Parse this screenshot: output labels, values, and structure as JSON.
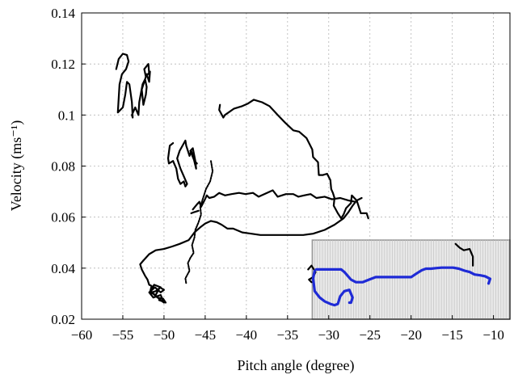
{
  "chart_data": {
    "type": "line",
    "xlabel": "Pitch angle (degree)",
    "ylabel": "Velocity (ms⁻¹)",
    "xlim": [
      -60,
      -8
    ],
    "ylim": [
      0.02,
      0.14
    ],
    "x_ticks": [
      -60,
      -55,
      -50,
      -45,
      -40,
      -35,
      -30,
      -25,
      -20,
      -15,
      -10
    ],
    "x_tick_labels": [
      "−60",
      "−55",
      "−50",
      "−45",
      "−40",
      "−35",
      "−30",
      "−25",
      "−20",
      "−15",
      "−10"
    ],
    "y_ticks": [
      0.02,
      0.04,
      0.06,
      0.08,
      0.1,
      0.12,
      0.14
    ],
    "y_tick_labels": [
      "0.02",
      "0.04",
      "0.06",
      "0.08",
      "0.1",
      "0.12",
      "0.14"
    ],
    "grid": true,
    "inset_shown": true,
    "inset_xlim": [
      -32,
      -8
    ],
    "inset_ylim": [
      0.02,
      0.051
    ],
    "colors": {
      "main": "#000000",
      "highlight": "#1f2bd6",
      "inset_fill": "#e8e8e8",
      "inset_border": "#999999",
      "grid": "#b5b5b5"
    },
    "series": [
      {
        "color": "#000000",
        "style": "solid",
        "x": [
          -55.8,
          -55.5,
          -55,
          -54.5,
          -54.3,
          -54.6,
          -55.1,
          -55.4,
          -55.6,
          -55,
          -54.7,
          -54.5,
          -54.2,
          -53.9,
          -53.8,
          -53.9,
          -53.5,
          -53.1,
          -53,
          -52.6,
          -52.3,
          -52.1,
          -52.2,
          -52.5,
          -52.7,
          -52.1,
          -51.8,
          -51.7,
          -52.2,
          -52.4,
          -51.9,
          -51.8
        ],
        "y": [
          0.118,
          0.122,
          0.124,
          0.1235,
          0.121,
          0.118,
          0.116,
          0.112,
          0.101,
          0.103,
          0.108,
          0.113,
          0.112,
          0.105,
          0.099,
          0.1,
          0.103,
          0.1,
          0.105,
          0.112,
          0.114,
          0.111,
          0.108,
          0.104,
          0.11,
          0.116,
          0.113,
          0.117,
          0.115,
          0.118,
          0.12,
          0.116
        ]
      },
      {
        "color": "#000000",
        "style": "solid",
        "x": [
          -48.9,
          -49.3,
          -49.5,
          -49.4,
          -48.9,
          -48.5,
          -48.3,
          -48,
          -47.6,
          -47.4,
          -47.2,
          -47.6,
          -48,
          -48.4,
          -48.1,
          -47.4,
          -47.3,
          -46.9,
          -46.7,
          -46.4,
          -46.1,
          -46.2,
          -46.5,
          -46.8,
          -46.3,
          -46
        ],
        "y": [
          0.089,
          0.088,
          0.083,
          0.081,
          0.082,
          0.079,
          0.075,
          0.073,
          0.074,
          0.072,
          0.073,
          0.076,
          0.079,
          0.083,
          0.086,
          0.09,
          0.088,
          0.084,
          0.086,
          0.083,
          0.079,
          0.082,
          0.087,
          0.086,
          0.082,
          0.081
        ]
      },
      {
        "color": "#000000",
        "style": "solid",
        "x": [
          -43.2,
          -43.3,
          -42.8,
          -42.6,
          -41.5,
          -40.5,
          -39.8,
          -39.1,
          -38.1,
          -37.2,
          -36.2,
          -35.3,
          -34.3,
          -33.6,
          -32.7,
          -32,
          -31.9,
          -31.3,
          -31.2,
          -30.7,
          -30.2,
          -29.8,
          -29.7,
          -29.5,
          -29.3,
          -29.4,
          -28.9,
          -28.5,
          -28.2,
          -27.9,
          -27.3,
          -27.2,
          -26.6,
          -26.3,
          -26.1,
          -25.4,
          -25.2
        ],
        "y": [
          0.104,
          0.102,
          0.099,
          0.1,
          0.1025,
          0.1035,
          0.1045,
          0.106,
          0.105,
          0.1035,
          0.1,
          0.097,
          0.094,
          0.0935,
          0.091,
          0.0865,
          0.0835,
          0.0815,
          0.0765,
          0.0765,
          0.077,
          0.0745,
          0.071,
          0.0695,
          0.0675,
          0.0645,
          0.0615,
          0.0595,
          0.061,
          0.0635,
          0.0655,
          0.0685,
          0.0665,
          0.0635,
          0.0615,
          0.0615,
          0.0595
        ]
      },
      {
        "color": "#000000",
        "style": "solid",
        "x": [
          -46.5,
          -46,
          -45.7,
          -45.5,
          -45.1,
          -44.8,
          -44.5,
          -43.9,
          -43.3,
          -42.6,
          -41.8,
          -40.9,
          -40.1,
          -39.2,
          -38.5,
          -37.5,
          -36.8,
          -36.2,
          -35.2,
          -34.3,
          -33.7,
          -33,
          -32.2,
          -31.5,
          -30.5,
          -29.6,
          -28.6,
          -27.6,
          -26.8
        ],
        "y": [
          0.063,
          0.065,
          0.066,
          0.064,
          0.0665,
          0.0685,
          0.0675,
          0.068,
          0.0695,
          0.0685,
          0.069,
          0.0695,
          0.069,
          0.0695,
          0.068,
          0.0695,
          0.0705,
          0.068,
          0.069,
          0.069,
          0.068,
          0.0685,
          0.069,
          0.0675,
          0.068,
          0.067,
          0.0675,
          0.0665,
          0.066
        ]
      },
      {
        "color": "#000000",
        "style": "solid",
        "x": [
          -52.5,
          -51.8,
          -51,
          -50,
          -49,
          -48.1,
          -47,
          -46.3,
          -45.6,
          -45,
          -44.3,
          -43.6,
          -43,
          -42.3,
          -41.6,
          -40.5,
          -39.4,
          -38.3,
          -37,
          -35.8,
          -34.5,
          -33.1,
          -31.9,
          -30.5,
          -29.3,
          -28.2,
          -27.6,
          -27.1,
          -26.6,
          -26
        ],
        "y": [
          0.043,
          0.0455,
          0.047,
          0.0475,
          0.0485,
          0.0495,
          0.051,
          0.054,
          0.056,
          0.0575,
          0.0585,
          0.058,
          0.057,
          0.0555,
          0.0555,
          0.054,
          0.0535,
          0.053,
          0.053,
          0.053,
          0.053,
          0.053,
          0.0535,
          0.055,
          0.057,
          0.0595,
          0.062,
          0.0645,
          0.0665,
          0.0675
        ]
      },
      {
        "color": "#000000",
        "style": "solid",
        "x": [
          -52.5,
          -52.9,
          -52.7,
          -52.3,
          -52,
          -51.8,
          -51.5,
          -51.7,
          -51,
          -50.5,
          -50,
          -50.4,
          -51.1,
          -51.8,
          -51.3,
          -50.4,
          -50,
          -50.6,
          -51.6,
          -51.2,
          -50.4,
          -51,
          -51.5,
          -50.8,
          -50.1,
          -49.8,
          -50.2,
          -50.6
        ],
        "y": [
          0.043,
          0.0415,
          0.0395,
          0.037,
          0.0355,
          0.0335,
          0.033,
          0.0305,
          0.0295,
          0.0325,
          0.0315,
          0.0305,
          0.0325,
          0.0305,
          0.0285,
          0.0295,
          0.0265,
          0.028,
          0.031,
          0.0335,
          0.0325,
          0.031,
          0.0305,
          0.0285,
          0.028,
          0.0265,
          0.027,
          0.0275
        ]
      },
      {
        "color": "#000000",
        "style": "solid",
        "x": [
          -46.7,
          -46.3,
          -45.8
        ],
        "y": [
          0.0615,
          0.062,
          0.0625
        ]
      },
      {
        "color": "#000000",
        "style": "dotted",
        "x": [
          -44.3,
          -44.1,
          -44.4,
          -44.9,
          -45.3,
          -45.6,
          -45.5,
          -45.8,
          -46.2,
          -46.3,
          -46.6,
          -46.4,
          -46.8,
          -47.1,
          -46.9,
          -47.4,
          -47.3
        ],
        "y": [
          0.082,
          0.078,
          0.074,
          0.071,
          0.067,
          0.064,
          0.061,
          0.058,
          0.055,
          0.052,
          0.049,
          0.046,
          0.044,
          0.042,
          0.039,
          0.036,
          0.034
        ]
      },
      {
        "color": "#000000",
        "style": "solid",
        "x": [
          -32.5,
          -32.1,
          -31.6,
          -31.9,
          -32.4,
          -32.1
        ],
        "y": [
          0.0395,
          0.041,
          0.0385,
          0.0365,
          0.0355,
          0.0345
        ]
      },
      {
        "color": "#000000",
        "style": "solid",
        "x": [
          -14.6,
          -14.1,
          -13.6,
          -12.9,
          -12.5,
          -12.5
        ],
        "y": [
          0.0495,
          0.048,
          0.047,
          0.0475,
          0.0445,
          0.041
        ]
      },
      {
        "color": "#1f2bd6",
        "style": "solid",
        "x": [
          -31.5,
          -30.5,
          -29.5,
          -28.5,
          -28.1,
          -27.7,
          -27.3,
          -26.7,
          -25.9,
          -25.1,
          -24.3,
          -23.4,
          -22.6,
          -21.7,
          -20.9,
          -20,
          -19.3,
          -18.7,
          -18.2,
          -17.6,
          -17,
          -16.3,
          -15.6,
          -14.9,
          -14.2,
          -13.5,
          -12.9,
          -12.3,
          -11.6,
          -11,
          -10.4,
          -10.6
        ],
        "y": [
          0.0395,
          0.0395,
          0.0395,
          0.0395,
          0.0385,
          0.037,
          0.0355,
          0.0345,
          0.0345,
          0.0355,
          0.0365,
          0.0365,
          0.0365,
          0.0365,
          0.0365,
          0.0365,
          0.038,
          0.0392,
          0.0398,
          0.0398,
          0.04,
          0.0402,
          0.0402,
          0.0402,
          0.0398,
          0.039,
          0.0385,
          0.0375,
          0.0372,
          0.0368,
          0.0358,
          0.034
        ]
      },
      {
        "color": "#1f2bd6",
        "style": "solid",
        "x": [
          -31.7,
          -31.9,
          -31.7,
          -31.1,
          -30.5,
          -29.8,
          -29.3,
          -28.9,
          -28.6,
          -28.1,
          -27.5,
          -27.1,
          -27.3,
          -27.5
        ],
        "y": [
          0.039,
          0.036,
          0.031,
          0.0285,
          0.027,
          0.026,
          0.0255,
          0.026,
          0.029,
          0.031,
          0.0315,
          0.0285,
          0.0265,
          0.0265
        ]
      }
    ]
  }
}
